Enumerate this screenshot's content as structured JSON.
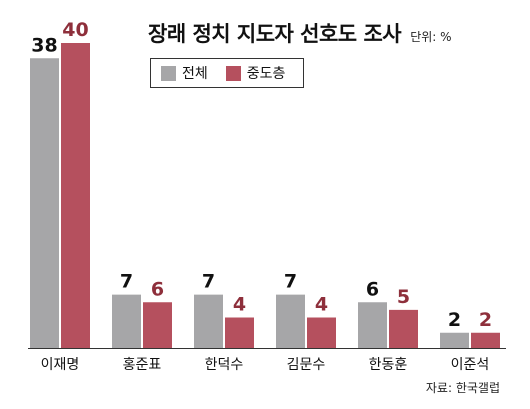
{
  "title": "장래 정치 지도자 선호도 조사",
  "unit": "단위: %",
  "source": "자료: 한국갤럽",
  "colors": {
    "total": "#a6a6a8",
    "moderate": "#b5505e",
    "moderate_label": "#8e2f3b",
    "axis": "#333333"
  },
  "chart_data": {
    "type": "bar",
    "title": "장래 정치 지도자 선호도 조사",
    "unit": "단위: %",
    "categories": [
      "이재명",
      "홍준표",
      "한덕수",
      "김문수",
      "한동훈",
      "이준석"
    ],
    "series": [
      {
        "name": "전체",
        "values": [
          38,
          7,
          7,
          7,
          6,
          2
        ]
      },
      {
        "name": "중도층",
        "values": [
          40,
          6,
          4,
          4,
          5,
          2
        ]
      }
    ],
    "ylim": [
      0,
      40
    ],
    "legend": "top-center",
    "grid": false
  }
}
